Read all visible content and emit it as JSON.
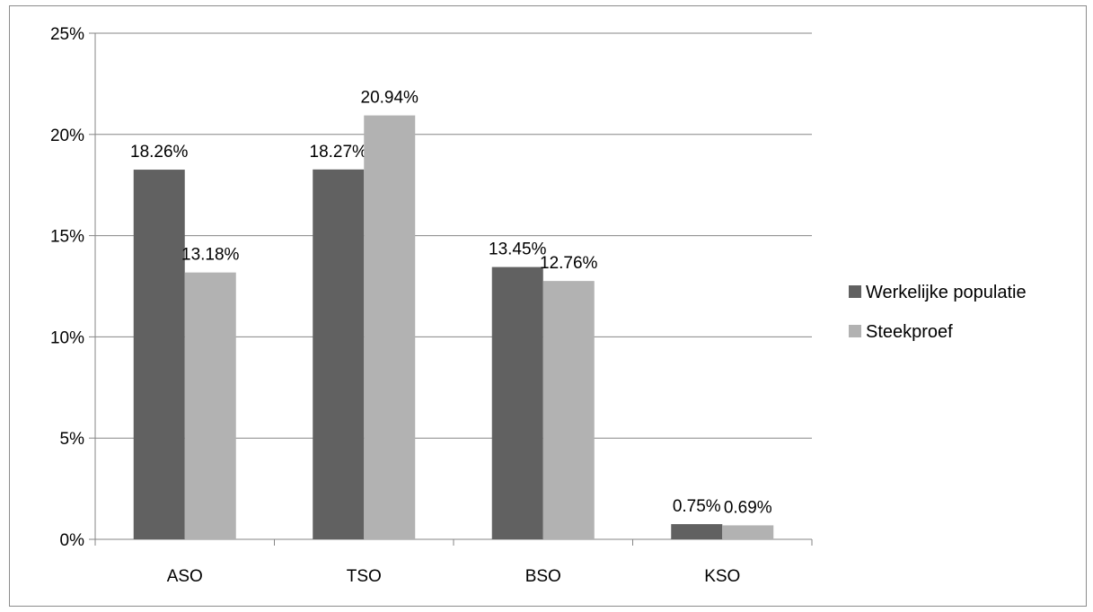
{
  "chart_data": {
    "type": "bar",
    "categories": [
      "ASO",
      "TSO",
      "BSO",
      "KSO"
    ],
    "series": [
      {
        "name": "Werkelijke populatie",
        "values": [
          18.26,
          18.27,
          13.45,
          0.75
        ],
        "labels": [
          "18.26%",
          "18.27%",
          "13.45%",
          "0.75%"
        ],
        "color": "#616161"
      },
      {
        "name": "Steekproef",
        "values": [
          13.18,
          20.94,
          12.76,
          0.69
        ],
        "labels": [
          "13.18%",
          "20.94%",
          "12.76%",
          "0.69%"
        ],
        "color": "#b2b2b2"
      }
    ],
    "y_ticks": [
      0,
      5,
      10,
      15,
      20,
      25
    ],
    "y_tick_labels": [
      "0%",
      "5%",
      "10%",
      "15%",
      "20%",
      "25%"
    ],
    "ylim": [
      0,
      25
    ],
    "grid": true,
    "legend_position": "right",
    "title": "",
    "xlabel": "",
    "ylabel": ""
  }
}
